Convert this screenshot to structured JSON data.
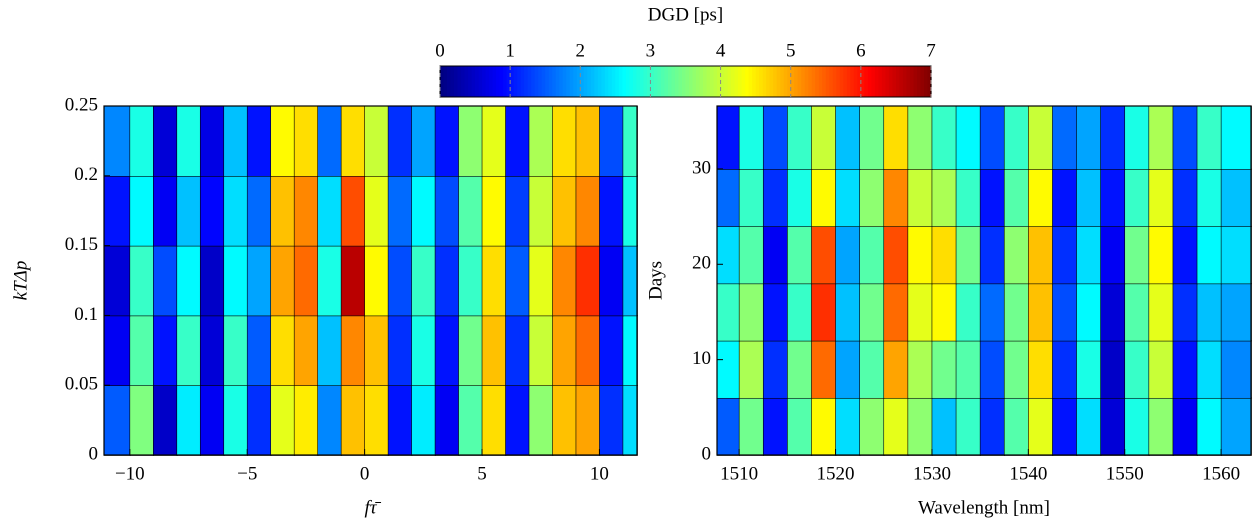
{
  "chart_data": [
    {
      "type": "colorbar",
      "title": "DGD [ps]",
      "colormap": "jet",
      "clim": [
        0,
        7
      ],
      "ticks": [
        0,
        1,
        2,
        3,
        4,
        5,
        6,
        7
      ]
    },
    {
      "type": "heatmap",
      "xlabel": "fτ̄",
      "ylabel": "kTΔp",
      "xlim": [
        -11.1,
        11.6
      ],
      "ylim": [
        0,
        0.25
      ],
      "xticks": [
        {
          "value": -10,
          "label": "−10"
        },
        {
          "value": -5,
          "label": "−5"
        },
        0,
        5,
        10
      ],
      "yticks": [
        0,
        0.05,
        0.1,
        0.15,
        0.2,
        0.25
      ],
      "xbins": [
        -11.1,
        -10,
        -9,
        -8,
        -7,
        -6,
        -5,
        -4,
        -3,
        -2,
        -1,
        0,
        1,
        2,
        3,
        4,
        5,
        6,
        7,
        8,
        9,
        10,
        11,
        11.6
      ],
      "ybins": [
        0,
        0.05,
        0.1,
        0.15,
        0.2,
        0.25
      ],
      "z": [
        [
          1.5,
          3.5,
          0.5,
          2.5,
          0.8,
          2.8,
          1.2,
          4.2,
          4.5,
          1.8,
          4.8,
          4.6,
          1.0,
          2.5,
          0.8,
          3.2,
          4.6,
          1.0,
          3.6,
          4.8,
          5.0,
          1.2,
          2.4
        ],
        [
          0.8,
          3.2,
          1.0,
          3.0,
          0.6,
          3.0,
          1.5,
          4.6,
          5.0,
          2.2,
          5.2,
          4.8,
          1.2,
          2.8,
          1.0,
          3.4,
          4.8,
          1.2,
          4.0,
          5.0,
          5.4,
          1.0,
          2.6
        ],
        [
          0.6,
          3.0,
          1.4,
          2.6,
          0.5,
          2.6,
          2.0,
          5.0,
          5.4,
          2.8,
          6.6,
          4.4,
          1.4,
          3.0,
          1.2,
          3.0,
          4.6,
          1.5,
          4.2,
          5.2,
          5.8,
          0.8,
          2.2
        ],
        [
          1.0,
          2.6,
          0.8,
          2.2,
          0.9,
          2.4,
          1.6,
          4.8,
          5.2,
          2.4,
          5.6,
          4.2,
          1.6,
          2.6,
          1.4,
          3.2,
          4.4,
          1.3,
          4.0,
          4.8,
          5.2,
          1.0,
          2.8
        ],
        [
          1.8,
          2.8,
          0.6,
          2.8,
          0.7,
          2.2,
          1.0,
          4.4,
          4.6,
          1.6,
          4.6,
          4.0,
          1.2,
          2.0,
          1.0,
          3.6,
          4.2,
          1.0,
          3.8,
          4.6,
          4.8,
          1.4,
          3.0
        ]
      ]
    },
    {
      "type": "heatmap",
      "xlabel": "Wavelength [nm]",
      "ylabel": "Days",
      "xlim": [
        1507.7,
        1563.1
      ],
      "ylim": [
        0,
        36.6
      ],
      "xticks": [
        1510,
        1520,
        1530,
        1540,
        1550,
        1560
      ],
      "yticks": [
        0,
        10,
        20,
        30
      ],
      "xbins": [
        1507.7,
        1510,
        1512.5,
        1515,
        1517.5,
        1520,
        1522.5,
        1525,
        1527.5,
        1530,
        1532.5,
        1535,
        1537.5,
        1540,
        1542.5,
        1545,
        1547.5,
        1550,
        1552.5,
        1555,
        1557.5,
        1560,
        1563.1
      ],
      "ybins": [
        0,
        6,
        12,
        18,
        24,
        30,
        36.6
      ],
      "z": [
        [
          1.5,
          3.4,
          1.0,
          3.2,
          4.4,
          2.4,
          3.6,
          4.2,
          3.6,
          2.2,
          3.0,
          1.2,
          3.2,
          4.2,
          1.0,
          2.4,
          0.6,
          2.8,
          3.6,
          0.8,
          2.6,
          2.0
        ],
        [
          2.6,
          3.8,
          1.2,
          3.4,
          5.4,
          2.0,
          3.2,
          5.0,
          3.8,
          3.4,
          3.2,
          1.4,
          3.4,
          4.6,
          1.2,
          2.8,
          0.5,
          3.0,
          4.0,
          1.0,
          2.4,
          1.8
        ],
        [
          3.0,
          3.6,
          1.0,
          3.0,
          5.8,
          2.2,
          3.4,
          5.4,
          4.2,
          4.4,
          3.0,
          1.6,
          3.4,
          4.8,
          1.4,
          2.6,
          0.6,
          3.2,
          4.2,
          1.2,
          2.2,
          2.0
        ],
        [
          2.4,
          3.2,
          0.8,
          3.2,
          5.6,
          2.0,
          3.2,
          5.6,
          4.4,
          4.6,
          3.4,
          1.2,
          3.6,
          4.8,
          1.2,
          2.4,
          0.8,
          3.4,
          4.4,
          1.0,
          2.6,
          2.4
        ],
        [
          1.6,
          3.0,
          1.2,
          2.8,
          4.4,
          2.4,
          3.6,
          5.2,
          4.0,
          3.8,
          3.0,
          1.0,
          3.2,
          4.4,
          1.0,
          2.2,
          1.0,
          3.0,
          4.2,
          1.2,
          2.8,
          2.2
        ],
        [
          1.0,
          2.8,
          1.4,
          3.0,
          4.0,
          2.2,
          3.4,
          4.6,
          3.6,
          3.0,
          2.6,
          1.4,
          3.0,
          4.0,
          1.6,
          2.0,
          1.2,
          2.8,
          3.8,
          1.4,
          3.0,
          2.6
        ]
      ]
    }
  ]
}
